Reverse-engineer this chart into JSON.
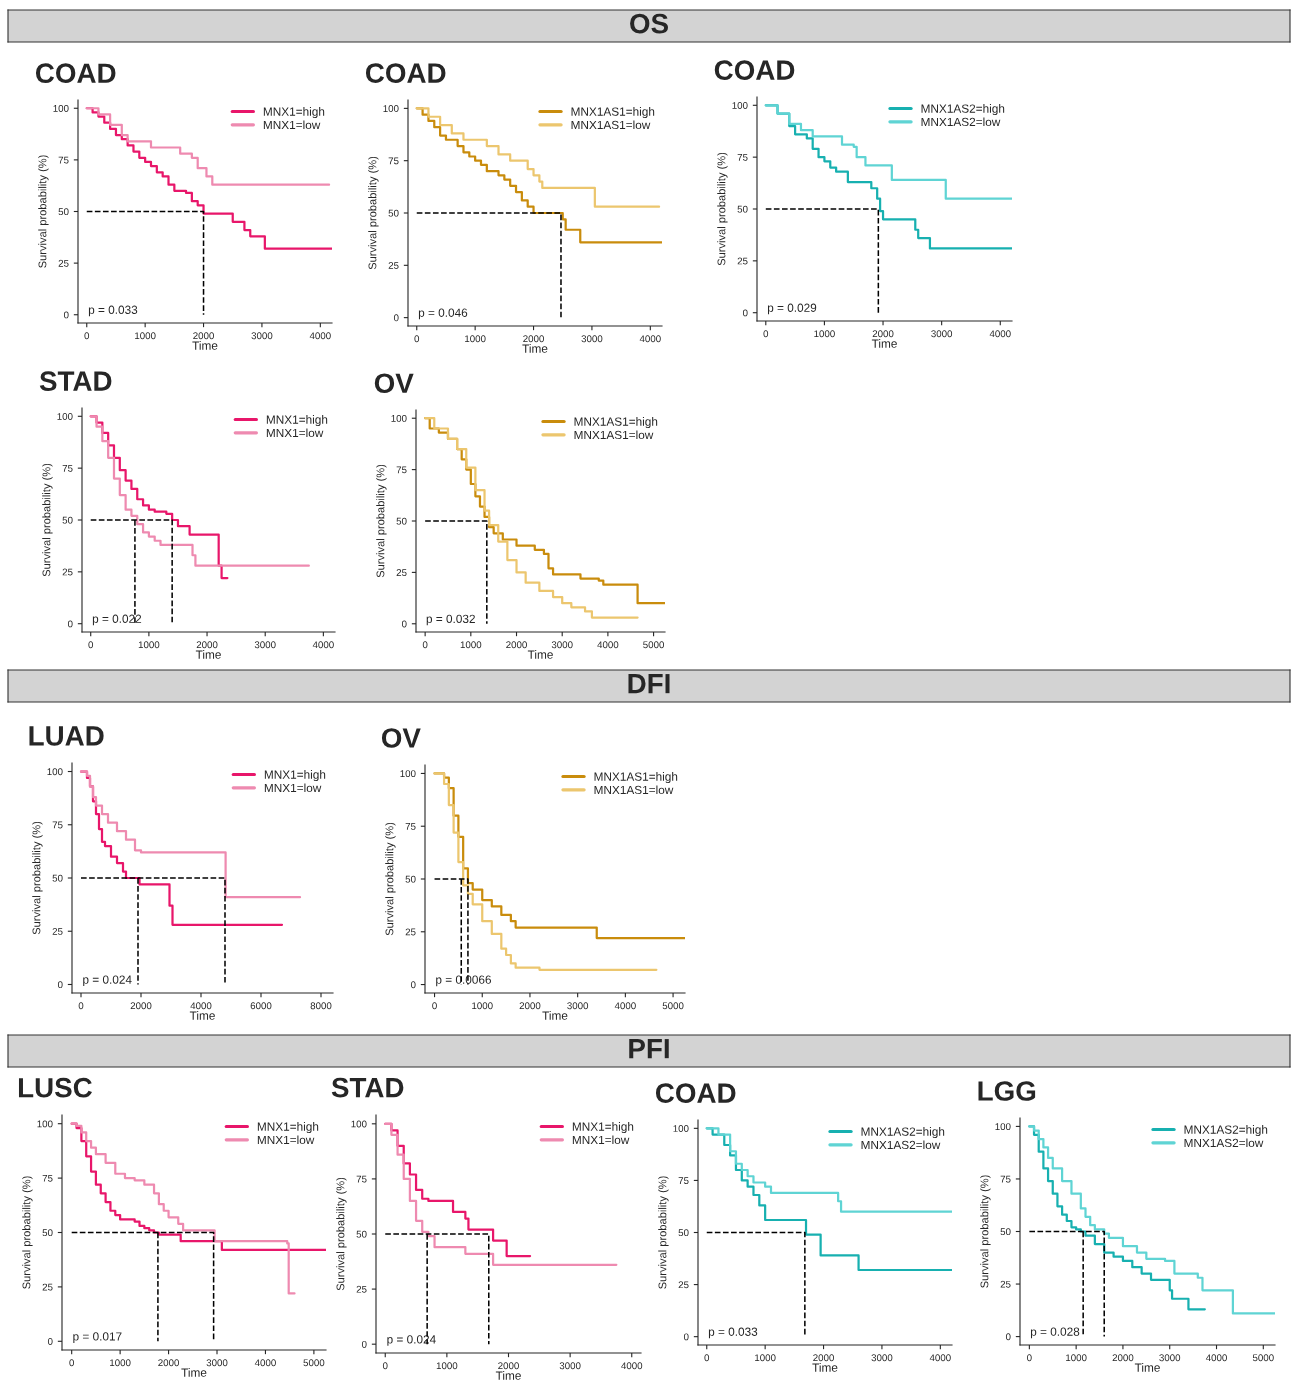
{
  "chart_data": [
    {
      "type": "other",
      "title": "OS"
    },
    {
      "type": "step",
      "title": "COAD",
      "xlabel": "Time",
      "ylabel": "Survival probability (%)",
      "xlim": [
        -150,
        4200
      ],
      "xticks": [
        0,
        1000,
        2000,
        3000,
        4000
      ],
      "ylim": [
        -4,
        104
      ],
      "yticks": [
        0,
        25,
        50,
        75,
        100
      ],
      "legend": "top right",
      "grid": false,
      "annotations": [
        "p = 0.033"
      ],
      "series": [
        {
          "name": "MNX1=high",
          "color": "#e8166a",
          "x": [
            0,
            100,
            200,
            300,
            400,
            500,
            600,
            700,
            800,
            900,
            1000,
            1100,
            1200,
            1300,
            1400,
            1500,
            1700,
            1800,
            1900,
            2000,
            2450,
            2500,
            2700,
            2800,
            3050,
            4200
          ],
          "values": [
            100,
            98,
            96,
            93,
            90,
            87,
            85,
            82,
            79,
            76,
            74,
            72,
            69,
            67,
            63,
            60,
            59,
            55,
            53,
            49,
            49,
            45,
            41,
            38,
            32,
            32
          ]
        },
        {
          "name": "MNX1=low",
          "color": "#ee8ab0",
          "x": [
            0,
            200,
            400,
            600,
            700,
            1100,
            1600,
            1800,
            1900,
            2050,
            2150,
            4150
          ],
          "values": [
            100,
            97,
            92,
            87,
            84,
            81,
            78,
            76,
            71,
            67,
            63,
            63
          ]
        },
        {
          "type": "line",
          "color": "#000000",
          "line_style": "dashed",
          "x": [
            0,
            2000,
            2000
          ],
          "values": [
            50,
            50,
            0
          ]
        }
      ]
    },
    {
      "type": "step",
      "title": "COAD",
      "xlabel": "Time",
      "ylabel": "Survival probability (%)",
      "xlim": [
        -150,
        4200
      ],
      "xticks": [
        0,
        1000,
        2000,
        3000,
        4000
      ],
      "ylim": [
        -4,
        104
      ],
      "yticks": [
        0,
        25,
        50,
        75,
        100
      ],
      "legend": "top right",
      "grid": false,
      "annotations": [
        "p = 0.046"
      ],
      "series": [
        {
          "name": "MNX1AS1=high",
          "color": "#c98c0c",
          "x": [
            0,
            100,
            200,
            300,
            400,
            500,
            700,
            800,
            900,
            1000,
            1100,
            1200,
            1400,
            1500,
            1600,
            1700,
            1800,
            1900,
            2000,
            2450,
            2500,
            2550,
            2800,
            4200
          ],
          "values": [
            100,
            97,
            94,
            91,
            87,
            85,
            82,
            79,
            77,
            75,
            73,
            70,
            68,
            66,
            63,
            60,
            56,
            53,
            50,
            50,
            47,
            42,
            36,
            36
          ]
        },
        {
          "name": "MNX1AS1=low",
          "color": "#ecc66e",
          "x": [
            0,
            200,
            400,
            600,
            800,
            1200,
            1400,
            1600,
            1900,
            2000,
            2100,
            2150,
            3000,
            3050,
            4150
          ],
          "values": [
            100,
            96,
            92,
            88,
            85,
            82,
            78,
            75,
            71,
            68,
            65,
            62,
            62,
            53,
            53
          ]
        },
        {
          "type": "line",
          "color": "#000000",
          "line_style": "dashed",
          "x": [
            0,
            2470,
            2470
          ],
          "values": [
            50,
            50,
            0
          ]
        }
      ]
    },
    {
      "type": "step",
      "title": "COAD",
      "xlabel": "Time",
      "ylabel": "Survival probability (%)",
      "xlim": [
        -150,
        4200
      ],
      "xticks": [
        0,
        1000,
        2000,
        3000,
        4000
      ],
      "ylim": [
        -4,
        104
      ],
      "yticks": [
        0,
        25,
        50,
        75,
        100
      ],
      "legend": "top right",
      "grid": false,
      "annotations": [
        "p = 0.029"
      ],
      "series": [
        {
          "name": "MNX1AS2=high",
          "color": "#17b0b0",
          "x": [
            0,
            200,
            400,
            500,
            700,
            800,
            900,
            1000,
            1100,
            1200,
            1400,
            1700,
            1800,
            1900,
            1950,
            2000,
            2500,
            2550,
            2600,
            2800,
            4200
          ],
          "values": [
            100,
            96,
            90,
            86,
            84,
            79,
            75,
            73,
            70,
            68,
            63,
            63,
            60,
            55,
            49,
            45,
            45,
            40,
            36,
            31,
            31
          ]
        },
        {
          "name": "MNX1AS2=low",
          "color": "#5fd4d4",
          "x": [
            0,
            200,
            400,
            600,
            800,
            1200,
            1300,
            1500,
            1550,
            1700,
            2100,
            2150,
            3050,
            3070,
            4200
          ],
          "values": [
            100,
            96,
            91,
            88,
            85,
            85,
            81,
            80,
            75,
            71,
            71,
            64,
            64,
            55,
            55
          ]
        },
        {
          "type": "line",
          "color": "#000000",
          "line_style": "dashed",
          "x": [
            0,
            1920,
            1920
          ],
          "values": [
            50,
            50,
            0
          ]
        }
      ]
    },
    {
      "type": "step",
      "title": "STAD",
      "xlabel": "Time",
      "ylabel": "Survival probability (%)",
      "xlim": [
        -150,
        4200
      ],
      "xticks": [
        0,
        1000,
        2000,
        3000,
        4000
      ],
      "ylim": [
        -4,
        104
      ],
      "yticks": [
        0,
        25,
        50,
        75,
        100
      ],
      "legend": "top right",
      "grid": false,
      "annotations": [
        "p = 0.022"
      ],
      "series": [
        {
          "name": "MNX1=high",
          "color": "#e8166a",
          "x": [
            0,
            100,
            200,
            300,
            400,
            500,
            600,
            700,
            800,
            900,
            1000,
            1100,
            1300,
            1400,
            1500,
            1700,
            2100,
            2200,
            2250,
            2350
          ],
          "values": [
            100,
            97,
            92,
            86,
            80,
            74,
            69,
            65,
            60,
            57,
            55,
            54,
            53,
            50,
            47,
            43,
            43,
            28,
            22,
            22
          ]
        },
        {
          "name": "MNX1=low",
          "color": "#ee8ab0",
          "x": [
            0,
            100,
            200,
            300,
            400,
            500,
            600,
            700,
            800,
            900,
            1000,
            1100,
            1200,
            1600,
            1750,
            1800,
            3750
          ],
          "values": [
            100,
            95,
            88,
            80,
            70,
            62,
            55,
            52,
            48,
            44,
            42,
            40,
            38,
            38,
            33,
            28,
            28
          ]
        },
        {
          "type": "line",
          "color": "#000000",
          "line_style": "dashed",
          "x": [
            0,
            1400,
            1400
          ],
          "values": [
            50,
            50,
            0
          ]
        },
        {
          "type": "line",
          "color": "#000000",
          "line_style": "dashed",
          "x": [
            760,
            760
          ],
          "values": [
            50,
            0
          ]
        }
      ]
    },
    {
      "type": "step",
      "title": "OV",
      "xlabel": "Time",
      "ylabel": "Survival probability (%)",
      "xlim": [
        -200,
        5250
      ],
      "xticks": [
        0,
        1000,
        2000,
        3000,
        4000,
        5000
      ],
      "ylim": [
        -4,
        104
      ],
      "yticks": [
        0,
        25,
        50,
        75,
        100
      ],
      "legend": "top right",
      "grid": false,
      "annotations": [
        "p = 0.032"
      ],
      "series": [
        {
          "name": "MNX1AS1=high",
          "color": "#c98c0c",
          "x": [
            0,
            100,
            300,
            500,
            700,
            800,
            900,
            1000,
            1100,
            1200,
            1300,
            1400,
            1500,
            1700,
            2000,
            2400,
            2600,
            2700,
            2800,
            3300,
            3400,
            3800,
            3900,
            4600,
            4650,
            5250
          ],
          "values": [
            100,
            95,
            93,
            90,
            85,
            80,
            75,
            68,
            62,
            57,
            52,
            47,
            44,
            41,
            38,
            36,
            34,
            27,
            24,
            24,
            22,
            21,
            19,
            19,
            10,
            10
          ]
        },
        {
          "name": "MNX1AS1=low",
          "color": "#ecc66e",
          "x": [
            0,
            200,
            500,
            700,
            900,
            1100,
            1300,
            1400,
            1600,
            1800,
            2000,
            2200,
            2500,
            2800,
            3000,
            3200,
            3500,
            3650,
            4650
          ],
          "values": [
            100,
            95,
            90,
            85,
            76,
            65,
            55,
            48,
            40,
            31,
            25,
            20,
            16,
            13,
            10,
            8,
            6,
            3,
            3
          ]
        },
        {
          "type": "line",
          "color": "#000000",
          "line_style": "dashed",
          "x": [
            0,
            1350,
            1350
          ],
          "values": [
            50,
            50,
            0
          ]
        }
      ]
    },
    {
      "type": "other",
      "title": "DFI"
    },
    {
      "type": "step",
      "title": "LUAD",
      "xlabel": "Time",
      "ylabel": "Survival probability (%)",
      "xlim": [
        -300,
        8400
      ],
      "xticks": [
        0,
        2000,
        4000,
        6000,
        8000
      ],
      "ylim": [
        -4,
        104
      ],
      "yticks": [
        0,
        25,
        50,
        75,
        100
      ],
      "legend": "top right",
      "grid": false,
      "annotations": [
        "p = 0.024"
      ],
      "series": [
        {
          "name": "MNX1=high",
          "color": "#e8166a",
          "x": [
            0,
            200,
            300,
            400,
            500,
            600,
            700,
            800,
            1000,
            1200,
            1400,
            1500,
            1900,
            1950,
            2900,
            2950,
            3050,
            6700
          ],
          "values": [
            100,
            97,
            93,
            86,
            80,
            73,
            67,
            65,
            60,
            57,
            53,
            50,
            50,
            47,
            47,
            37,
            28,
            28
          ]
        },
        {
          "name": "MNX1=low",
          "color": "#ee8ab0",
          "x": [
            0,
            200,
            300,
            400,
            500,
            700,
            900,
            1200,
            1500,
            1800,
            2000,
            4800,
            4820,
            7300
          ],
          "values": [
            100,
            98,
            93,
            88,
            84,
            80,
            76,
            72,
            68,
            63,
            62,
            62,
            41,
            41
          ]
        },
        {
          "type": "line",
          "color": "#000000",
          "line_style": "dashed",
          "x": [
            0,
            4800,
            4800
          ],
          "values": [
            50,
            50,
            0
          ]
        },
        {
          "type": "line",
          "color": "#000000",
          "line_style": "dashed",
          "x": [
            1900,
            1900
          ],
          "values": [
            50,
            0
          ]
        }
      ]
    },
    {
      "type": "step",
      "title": "OV",
      "xlabel": "Time",
      "ylabel": "Survival probability (%)",
      "xlim": [
        -200,
        5250
      ],
      "xticks": [
        0,
        1000,
        2000,
        3000,
        4000,
        5000
      ],
      "ylim": [
        -4,
        104
      ],
      "yticks": [
        0,
        25,
        50,
        75,
        100
      ],
      "legend": "top right",
      "grid": false,
      "annotations": [
        "p = 0.0066"
      ],
      "series": [
        {
          "name": "MNX1AS1=high",
          "color": "#c98c0c",
          "x": [
            0,
            200,
            300,
            400,
            500,
            600,
            700,
            800,
            1000,
            1200,
            1400,
            1600,
            1700,
            3350,
            3400,
            5250
          ],
          "values": [
            100,
            98,
            93,
            80,
            70,
            55,
            48,
            45,
            40,
            37,
            33,
            30,
            27,
            27,
            22,
            22
          ]
        },
        {
          "name": "MNX1AS1=low",
          "color": "#ecc66e",
          "x": [
            0,
            200,
            300,
            400,
            500,
            600,
            700,
            800,
            1000,
            1200,
            1400,
            1500,
            1600,
            1700,
            2100,
            2200,
            4650
          ],
          "values": [
            100,
            95,
            85,
            72,
            58,
            47,
            43,
            38,
            30,
            24,
            17,
            14,
            10,
            8,
            8,
            7,
            7
          ]
        },
        {
          "type": "line",
          "color": "#000000",
          "line_style": "dashed",
          "x": [
            0,
            700,
            700
          ],
          "values": [
            50,
            50,
            0
          ]
        },
        {
          "type": "line",
          "color": "#000000",
          "line_style": "dashed",
          "x": [
            560,
            560
          ],
          "values": [
            50,
            0
          ]
        }
      ]
    },
    {
      "type": "other",
      "title": "PFI"
    },
    {
      "type": "step",
      "title": "LUSC",
      "xlabel": "Time",
      "ylabel": "Survival probability (%)",
      "xlim": [
        -200,
        5250
      ],
      "xticks": [
        0,
        1000,
        2000,
        3000,
        4000,
        5000
      ],
      "ylim": [
        -4,
        104
      ],
      "yticks": [
        0,
        25,
        50,
        75,
        100
      ],
      "legend": "top right",
      "grid": false,
      "annotations": [
        "p = 0.017"
      ],
      "series": [
        {
          "name": "MNX1=high",
          "color": "#e8166a",
          "x": [
            0,
            100,
            200,
            300,
            400,
            500,
            600,
            700,
            800,
            900,
            1000,
            1300,
            1400,
            1500,
            1600,
            1700,
            1800,
            2200,
            2250,
            3000,
            3100,
            5250
          ],
          "values": [
            100,
            98,
            92,
            85,
            78,
            72,
            68,
            64,
            60,
            58,
            56,
            55,
            53,
            52,
            51,
            50,
            49,
            49,
            46,
            46,
            42,
            42
          ]
        },
        {
          "name": "MNX1=low",
          "color": "#ee8ab0",
          "x": [
            0,
            100,
            200,
            300,
            400,
            500,
            700,
            900,
            1100,
            1300,
            1500,
            1700,
            1800,
            1900,
            2000,
            2200,
            2300,
            2900,
            2950,
            4450,
            4480,
            4600
          ],
          "values": [
            100,
            99,
            96,
            92,
            89,
            86,
            82,
            77,
            75,
            74,
            72,
            68,
            63,
            60,
            57,
            54,
            51,
            51,
            46,
            45,
            22,
            22
          ]
        },
        {
          "type": "line",
          "color": "#000000",
          "line_style": "dashed",
          "x": [
            0,
            2930,
            2930
          ],
          "values": [
            50,
            50,
            0
          ]
        },
        {
          "type": "line",
          "color": "#000000",
          "line_style": "dashed",
          "x": [
            1780,
            1780
          ],
          "values": [
            50,
            0
          ]
        }
      ]
    },
    {
      "type": "step",
      "title": "STAD",
      "xlabel": "Time",
      "ylabel": "Survival probability (%)",
      "xlim": [
        -150,
        4150
      ],
      "xticks": [
        0,
        1000,
        2000,
        3000,
        4000
      ],
      "ylim": [
        -4,
        104
      ],
      "yticks": [
        0,
        25,
        50,
        75,
        100
      ],
      "legend": "top right",
      "grid": false,
      "annotations": [
        "p = 0.024"
      ],
      "series": [
        {
          "name": "MNX1=high",
          "color": "#e8166a",
          "x": [
            0,
            100,
            200,
            300,
            400,
            500,
            600,
            700,
            1000,
            1100,
            1300,
            1350,
            1700,
            1750,
            1950,
            1970,
            2350
          ],
          "values": [
            100,
            97,
            90,
            82,
            77,
            70,
            66,
            65,
            65,
            60,
            57,
            52,
            52,
            47,
            47,
            40,
            40
          ]
        },
        {
          "name": "MNX1=low",
          "color": "#ee8ab0",
          "x": [
            0,
            100,
            200,
            300,
            400,
            500,
            600,
            700,
            800,
            1000,
            1300,
            1700,
            1750,
            3750
          ],
          "values": [
            100,
            95,
            86,
            75,
            65,
            56,
            51,
            49,
            44,
            44,
            41,
            41,
            36,
            36
          ]
        },
        {
          "type": "line",
          "color": "#000000",
          "line_style": "dashed",
          "x": [
            0,
            1680,
            1680
          ],
          "values": [
            50,
            50,
            0
          ]
        },
        {
          "type": "line",
          "color": "#000000",
          "line_style": "dashed",
          "x": [
            680,
            680
          ],
          "values": [
            50,
            0
          ]
        }
      ]
    },
    {
      "type": "step",
      "title": "COAD",
      "xlabel": "Time",
      "ylabel": "Survival probability (%)",
      "xlim": [
        -150,
        4200
      ],
      "xticks": [
        0,
        1000,
        2000,
        3000,
        4000
      ],
      "ylim": [
        -4,
        104
      ],
      "yticks": [
        0,
        25,
        50,
        75,
        100
      ],
      "legend": "top right",
      "grid": false,
      "annotations": [
        "p = 0.033"
      ],
      "series": [
        {
          "name": "MNX1AS2=high",
          "color": "#17b0b0",
          "x": [
            0,
            100,
            300,
            400,
            500,
            600,
            700,
            800,
            900,
            1000,
            1600,
            1700,
            1900,
            1950,
            2550,
            2600,
            4200
          ],
          "values": [
            100,
            97,
            92,
            87,
            80,
            75,
            72,
            68,
            63,
            56,
            56,
            49,
            49,
            39,
            39,
            32,
            32
          ]
        },
        {
          "name": "MNX1AS2=low",
          "color": "#5fd4d4",
          "x": [
            0,
            200,
            400,
            500,
            600,
            700,
            800,
            1000,
            1100,
            2200,
            2250,
            2300,
            4200
          ],
          "values": [
            100,
            97,
            89,
            83,
            80,
            77,
            74,
            72,
            69,
            69,
            65,
            60,
            60
          ]
        },
        {
          "type": "line",
          "color": "#000000",
          "line_style": "dashed",
          "x": [
            0,
            1680,
            1680
          ],
          "values": [
            50,
            50,
            0
          ]
        }
      ]
    },
    {
      "type": "step",
      "title": "LGG",
      "xlabel": "Time",
      "ylabel": "Survival probability (%)",
      "xlim": [
        -200,
        5250
      ],
      "xticks": [
        0,
        1000,
        2000,
        3000,
        4000,
        5000
      ],
      "ylim": [
        -4,
        104
      ],
      "yticks": [
        0,
        25,
        50,
        75,
        100
      ],
      "legend": "top right",
      "grid": false,
      "annotations": [
        "p = 0.028"
      ],
      "series": [
        {
          "name": "MNX1AS2=high",
          "color": "#17b0b0",
          "x": [
            0,
            100,
            200,
            300,
            400,
            500,
            600,
            700,
            800,
            900,
            1000,
            1100,
            1200,
            1400,
            1600,
            1800,
            2000,
            2200,
            2400,
            2600,
            3000,
            3050,
            3400,
            3750
          ],
          "values": [
            100,
            96,
            88,
            80,
            74,
            68,
            62,
            58,
            55,
            52,
            51,
            50,
            48,
            44,
            40,
            38,
            36,
            33,
            30,
            27,
            22,
            18,
            13,
            13
          ]
        },
        {
          "name": "MNX1AS2=low",
          "color": "#5fd4d4",
          "x": [
            0,
            100,
            200,
            300,
            400,
            500,
            700,
            900,
            1100,
            1200,
            1300,
            1400,
            1600,
            1700,
            2000,
            2300,
            2500,
            2900,
            3100,
            3600,
            3700,
            4300,
            4350,
            5250
          ],
          "values": [
            100,
            98,
            94,
            90,
            85,
            80,
            74,
            68,
            61,
            57,
            53,
            51,
            49,
            47,
            43,
            40,
            37,
            36,
            30,
            28,
            22,
            22,
            11,
            11
          ]
        },
        {
          "type": "line",
          "color": "#000000",
          "line_style": "dashed",
          "x": [
            0,
            1600,
            1600
          ],
          "values": [
            50,
            50,
            0
          ]
        },
        {
          "type": "line",
          "color": "#000000",
          "line_style": "dashed",
          "x": [
            1150,
            1150
          ],
          "values": [
            50,
            0
          ]
        }
      ]
    }
  ]
}
